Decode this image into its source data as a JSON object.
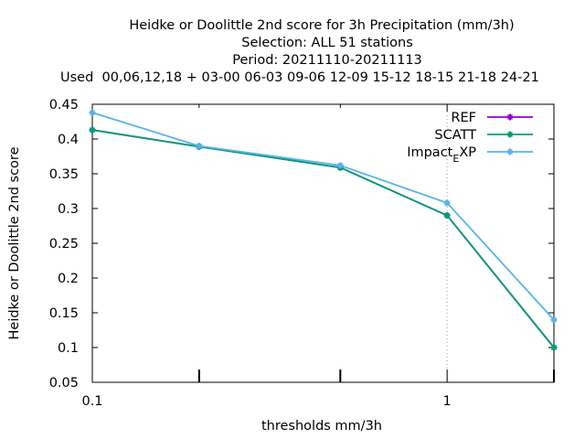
{
  "chart_data": {
    "type": "line",
    "title_lines": [
      "Heidke or Doolittle 2nd score  for 3h Precipitation (mm/3h)",
      "Selection: ALL     51 stations",
      "Period: 20211110-20211113",
      "Used  00,06,12,18 + 03-00 06-03 09-06 12-09 15-12 18-15 21-18 24-21"
    ],
    "xlabel": "thresholds mm/3h",
    "ylabel": "Heidke or Doolittle 2nd score",
    "x_scale": "log",
    "xlim": [
      0.1,
      2
    ],
    "ylim": [
      0.05,
      0.45
    ],
    "x_ticks": [
      0.1,
      0.2,
      0.5,
      1,
      2
    ],
    "x_tick_labels": [
      "0.1",
      "1"
    ],
    "y_ticks": [
      0.05,
      0.1,
      0.15,
      0.2,
      0.25,
      0.3,
      0.35,
      0.4,
      0.45
    ],
    "y_tick_labels": [
      "0.05",
      "0.1",
      "0.15",
      "0.2",
      "0.25",
      "0.3",
      "0.35",
      "0.4",
      "0.45"
    ],
    "grid": "dotted vertical at x=1",
    "legend_position": "top-right",
    "x": [
      0.1,
      0.2,
      0.5,
      1,
      2
    ],
    "series": [
      {
        "name": "REF",
        "color": "#9400d3",
        "marker": "cross",
        "values": [
          0.413,
          0.389,
          0.359,
          0.29,
          0.1
        ]
      },
      {
        "name": "SCATT",
        "color": "#009e73",
        "marker": "cross",
        "values": [
          0.413,
          0.389,
          0.359,
          0.29,
          0.1
        ]
      },
      {
        "name": "Impact_EXP",
        "legend_main": "Impact",
        "legend_sub": "E",
        "legend_tail": "XP",
        "color": "#56b4e9",
        "marker": "cross",
        "values": [
          0.438,
          0.39,
          0.362,
          0.308,
          0.14
        ]
      }
    ]
  }
}
